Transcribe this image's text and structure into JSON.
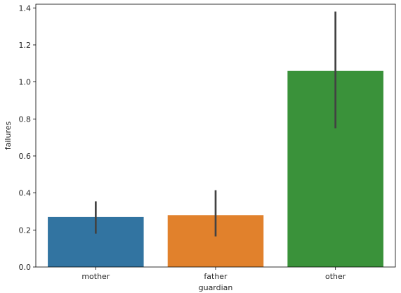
{
  "chart_data": {
    "type": "bar",
    "title": "",
    "xlabel": "guardian",
    "ylabel": "failures",
    "categories": [
      "mother",
      "father",
      "other"
    ],
    "values": [
      0.27,
      0.28,
      1.06
    ],
    "error_low": [
      0.18,
      0.165,
      0.75
    ],
    "error_high": [
      0.355,
      0.415,
      1.38
    ],
    "colors": [
      "#3274a1",
      "#e1812c",
      "#3a923a"
    ],
    "ylim": [
      0,
      1.42
    ],
    "yticks": [
      "0.0",
      "0.2",
      "0.4",
      "0.6",
      "0.8",
      "1.0",
      "1.2",
      "1.4"
    ],
    "grid": false,
    "legend": "none"
  }
}
